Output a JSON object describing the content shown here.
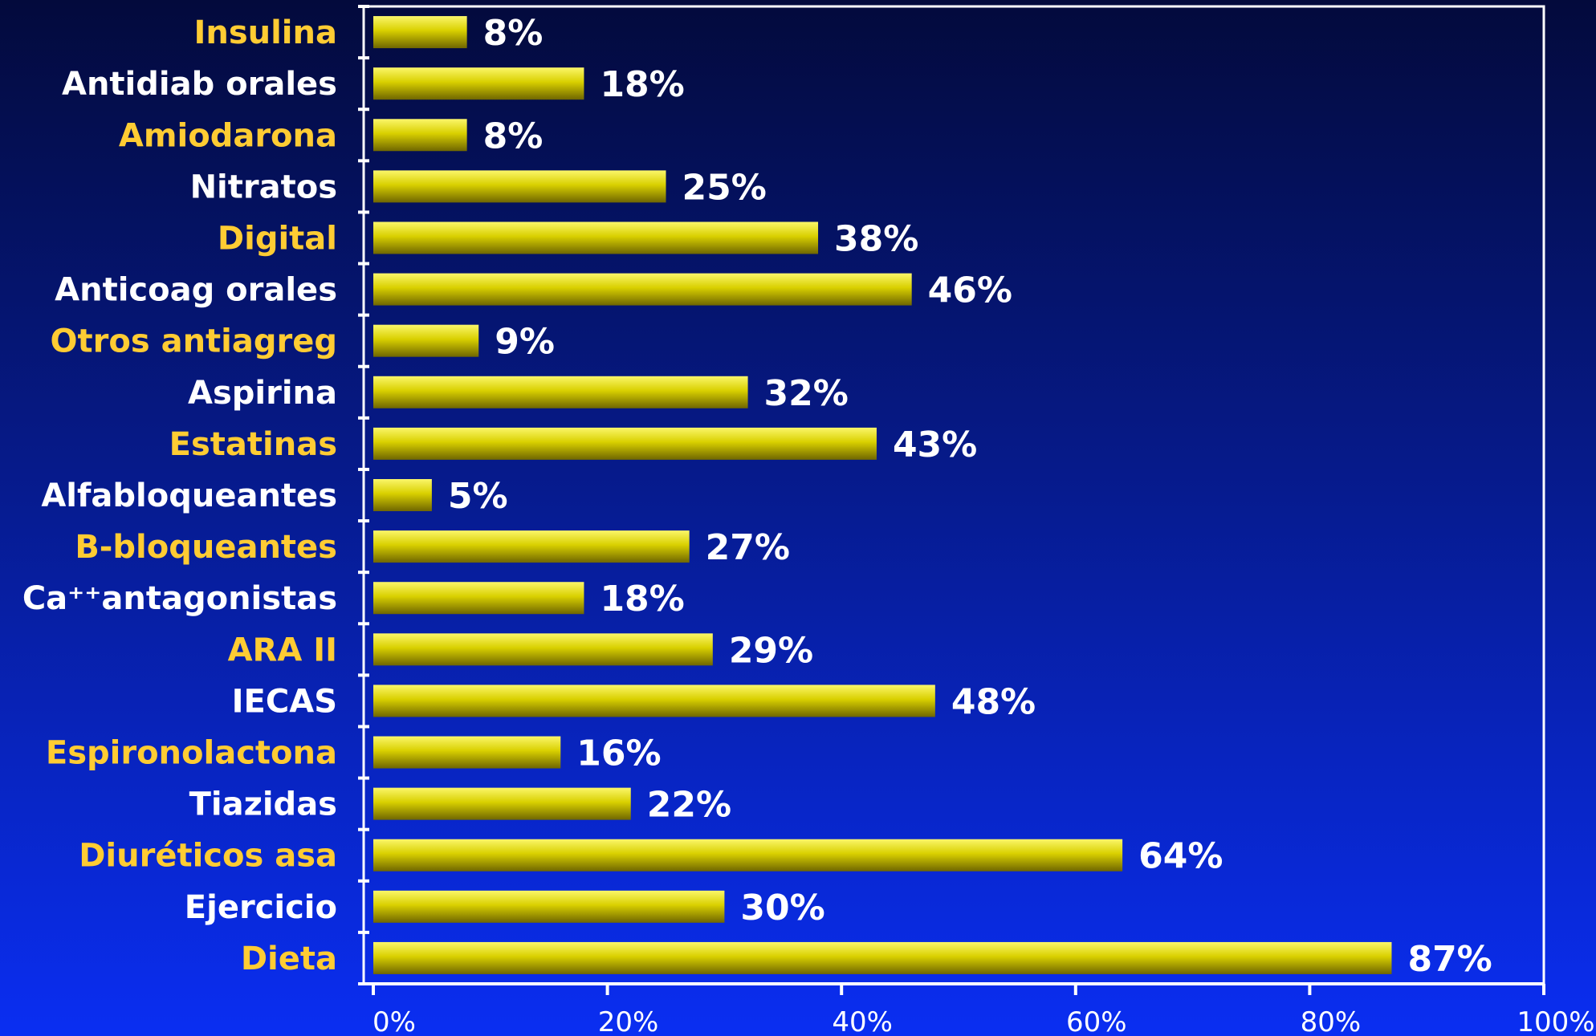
{
  "chart_data": {
    "type": "bar",
    "orientation": "horizontal",
    "categories": [
      {
        "text": "Insulina",
        "color": "#ffcc33"
      },
      {
        "text": "Antidiab orales",
        "color": "#ffffff"
      },
      {
        "text": "Amiodarona",
        "color": "#ffcc33"
      },
      {
        "text": "Nitratos",
        "color": "#ffffff"
      },
      {
        "text": "Digital",
        "color": "#ffcc33"
      },
      {
        "text": "Anticoag orales",
        "color": "#ffffff"
      },
      {
        "text": "Otros antiagreg",
        "color": "#ffcc33"
      },
      {
        "text": "Aspirina",
        "color": "#ffffff"
      },
      {
        "text": "Estatinas",
        "color": "#ffcc33"
      },
      {
        "text": "Alfabloqueantes",
        "color": "#ffffff"
      },
      {
        "text": "B-bloqueantes",
        "color": "#ffcc33"
      },
      {
        "text": "Ca⁺⁺antagonistas",
        "color": "#ffffff"
      },
      {
        "text": "ARA II",
        "color": "#ffcc33"
      },
      {
        "text": "IECAS",
        "color": "#ffffff"
      },
      {
        "text": "Espironolactona",
        "color": "#ffcc33"
      },
      {
        "text": "Tiazidas",
        "color": "#ffffff"
      },
      {
        "text": "Diuréticos asa",
        "color": "#ffcc33"
      },
      {
        "text": "Ejercicio",
        "color": "#ffffff"
      },
      {
        "text": "Dieta",
        "color": "#ffcc33"
      }
    ],
    "values": [
      8,
      18,
      8,
      25,
      38,
      46,
      9,
      32,
      43,
      5,
      27,
      18,
      29,
      48,
      16,
      22,
      64,
      30,
      87
    ],
    "data_labels": [
      "8%",
      "18%",
      "8%",
      "25%",
      "38%",
      "46%",
      "9%",
      "32%",
      "43%",
      "5%",
      "27%",
      "18%",
      "29%",
      "48%",
      "16%",
      "22%",
      "64%",
      "30%",
      "87%"
    ],
    "xlim": [
      0,
      100
    ],
    "x_ticks": [
      "0%",
      "20%",
      "40%",
      "60%",
      "80%",
      "100%"
    ],
    "title": "",
    "xlabel": "",
    "ylabel": "",
    "grid": false,
    "bar_color": "#e8e000",
    "plot_border_color": "#ffffff"
  }
}
